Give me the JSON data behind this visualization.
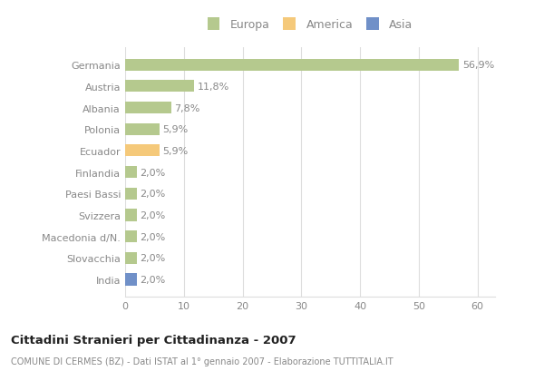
{
  "categories": [
    "Germania",
    "Austria",
    "Albania",
    "Polonia",
    "Ecuador",
    "Finlandia",
    "Paesi Bassi",
    "Svizzera",
    "Macedonia d/N.",
    "Slovacchia",
    "India"
  ],
  "values": [
    56.9,
    11.8,
    7.8,
    5.9,
    5.9,
    2.0,
    2.0,
    2.0,
    2.0,
    2.0,
    2.0
  ],
  "labels": [
    "56,9%",
    "11,8%",
    "7,8%",
    "5,9%",
    "5,9%",
    "2,0%",
    "2,0%",
    "2,0%",
    "2,0%",
    "2,0%",
    "2,0%"
  ],
  "colors": [
    "#b5c98e",
    "#b5c98e",
    "#b5c98e",
    "#b5c98e",
    "#f5c97a",
    "#b5c98e",
    "#b5c98e",
    "#b5c98e",
    "#b5c98e",
    "#b5c98e",
    "#7090c8"
  ],
  "legend_labels": [
    "Europa",
    "America",
    "Asia"
  ],
  "legend_colors": [
    "#b5c98e",
    "#f5c97a",
    "#7090c8"
  ],
  "title": "Cittadini Stranieri per Cittadinanza - 2007",
  "subtitle": "COMUNE DI CERMES (BZ) - Dati ISTAT al 1° gennaio 2007 - Elaborazione TUTTITALIA.IT",
  "xlim": [
    0,
    63
  ],
  "xticks": [
    0,
    10,
    20,
    30,
    40,
    50,
    60
  ],
  "bg_color": "#ffffff",
  "plot_bg_color": "#ffffff",
  "grid_color": "#dddddd",
  "label_color": "#888888",
  "bar_height": 0.55
}
